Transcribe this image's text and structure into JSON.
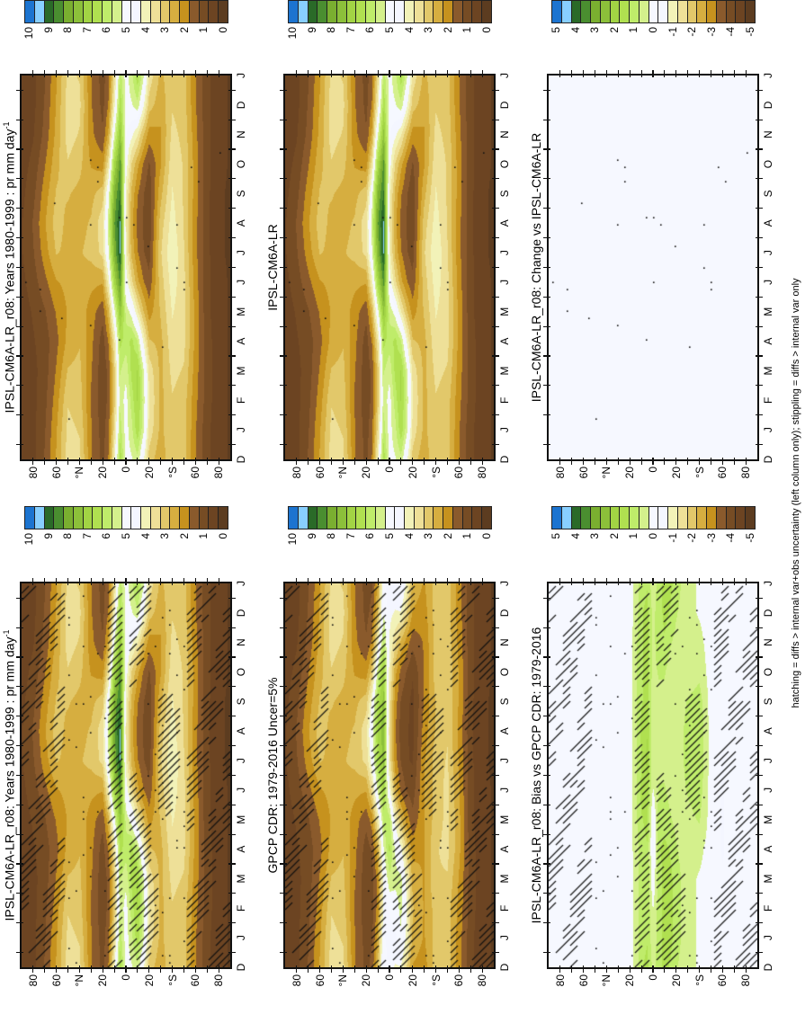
{
  "chart_data": {
    "type": "heatmap",
    "x_tick_labels": [
      "D",
      "J",
      "F",
      "M",
      "A",
      "M",
      "J",
      "J",
      "A",
      "S",
      "O",
      "N",
      "D",
      "J"
    ],
    "y_tick_labels": [
      "80",
      "60",
      "°N",
      "20",
      "0",
      "20",
      "°S",
      "60",
      "80"
    ],
    "y_tick_values": [
      80,
      60,
      40,
      20,
      0,
      -20,
      -40,
      -60,
      -80
    ],
    "grid_months": [
      "Jan",
      "Feb",
      "Mar",
      "Apr",
      "May",
      "Jun",
      "Jul",
      "Aug",
      "Sep",
      "Oct",
      "Nov",
      "Dec"
    ],
    "grid_lat": [
      90,
      80,
      70,
      60,
      50,
      40,
      30,
      20,
      15,
      10,
      5,
      0,
      -5,
      -10,
      -15,
      -20,
      -30,
      -40,
      -50,
      -60,
      -70,
      -80,
      -90
    ],
    "fields": {
      "model": [
        [
          0.4,
          0.4,
          0.4,
          0.5,
          0.5,
          0.6,
          0.7,
          0.7,
          0.6,
          0.5,
          0.4,
          0.4
        ],
        [
          0.6,
          0.6,
          0.6,
          0.7,
          0.8,
          1.0,
          1.2,
          1.3,
          1.1,
          0.9,
          0.7,
          0.6
        ],
        [
          1.2,
          1.1,
          1.0,
          1.0,
          1.2,
          1.6,
          2.0,
          2.2,
          2.0,
          1.7,
          1.4,
          1.3
        ],
        [
          2.2,
          2.0,
          1.8,
          1.6,
          1.8,
          2.2,
          2.8,
          3.0,
          2.8,
          2.6,
          2.4,
          2.3
        ],
        [
          3.4,
          3.2,
          2.8,
          2.4,
          2.3,
          2.4,
          2.6,
          2.6,
          2.8,
          3.2,
          3.5,
          3.5
        ],
        [
          3.2,
          3.0,
          2.9,
          2.7,
          2.6,
          2.6,
          2.7,
          2.6,
          2.6,
          2.9,
          3.2,
          3.4
        ],
        [
          1.8,
          1.7,
          1.8,
          1.9,
          2.0,
          2.4,
          2.9,
          2.8,
          2.6,
          2.2,
          1.9,
          1.8
        ],
        [
          1.0,
          0.9,
          0.9,
          1.0,
          1.4,
          2.3,
          3.4,
          3.6,
          3.0,
          2.0,
          1.3,
          1.1
        ],
        [
          1.6,
          1.4,
          1.4,
          1.8,
          2.6,
          4.0,
          5.2,
          5.6,
          5.0,
          3.6,
          2.4,
          1.8
        ],
        [
          3.4,
          3.0,
          3.0,
          3.6,
          5.0,
          6.8,
          7.8,
          8.2,
          7.8,
          6.8,
          5.2,
          4.0
        ],
        [
          6.0,
          5.6,
          5.8,
          6.4,
          7.4,
          8.4,
          9.3,
          9.3,
          8.8,
          8.4,
          7.4,
          6.6
        ],
        [
          5.0,
          5.0,
          5.4,
          6.0,
          5.6,
          4.6,
          4.0,
          3.8,
          4.0,
          4.6,
          4.8,
          5.0
        ],
        [
          5.6,
          6.0,
          6.4,
          6.4,
          5.0,
          3.4,
          2.6,
          2.4,
          2.6,
          3.2,
          4.4,
          5.2
        ],
        [
          6.6,
          6.8,
          6.8,
          5.8,
          3.8,
          2.4,
          1.8,
          1.6,
          1.8,
          2.4,
          3.8,
          5.6
        ],
        [
          5.4,
          5.6,
          5.4,
          4.2,
          2.8,
          1.8,
          1.3,
          1.2,
          1.3,
          1.7,
          2.8,
          4.4
        ],
        [
          3.6,
          3.8,
          3.6,
          2.8,
          2.0,
          1.4,
          1.0,
          0.9,
          0.9,
          1.2,
          2.0,
          3.0
        ],
        [
          2.6,
          2.6,
          2.6,
          2.6,
          2.8,
          3.0,
          3.2,
          3.0,
          2.6,
          2.2,
          2.2,
          2.4
        ],
        [
          3.2,
          3.2,
          3.4,
          3.6,
          3.8,
          4.0,
          4.2,
          4.0,
          3.8,
          3.6,
          3.4,
          3.2
        ],
        [
          3.0,
          3.0,
          3.2,
          3.4,
          3.4,
          3.4,
          3.3,
          3.2,
          3.2,
          3.2,
          3.1,
          3.0
        ],
        [
          1.8,
          1.9,
          2.0,
          2.1,
          2.1,
          2.0,
          1.9,
          1.9,
          2.0,
          2.0,
          1.9,
          1.8
        ],
        [
          0.9,
          1.0,
          1.0,
          1.0,
          0.9,
          0.9,
          0.9,
          0.9,
          0.9,
          0.9,
          0.9,
          0.9
        ],
        [
          0.4,
          0.4,
          0.4,
          0.4,
          0.4,
          0.4,
          0.3,
          0.3,
          0.3,
          0.4,
          0.4,
          0.4
        ],
        [
          0.2,
          0.2,
          0.2,
          0.2,
          0.2,
          0.2,
          0.2,
          0.2,
          0.2,
          0.2,
          0.2,
          0.2
        ]
      ],
      "obs": [
        [
          0.4,
          0.4,
          0.4,
          0.5,
          0.5,
          0.6,
          0.7,
          0.7,
          0.6,
          0.5,
          0.4,
          0.4
        ],
        [
          0.6,
          0.6,
          0.6,
          0.7,
          0.8,
          1.0,
          1.2,
          1.3,
          1.1,
          0.9,
          0.7,
          0.6
        ],
        [
          1.2,
          1.1,
          1.0,
          1.0,
          1.2,
          1.6,
          2.0,
          2.2,
          2.0,
          1.7,
          1.4,
          1.3
        ],
        [
          2.2,
          2.0,
          1.8,
          1.6,
          1.8,
          2.2,
          2.8,
          3.0,
          2.8,
          2.6,
          2.4,
          2.3
        ],
        [
          3.4,
          3.2,
          2.8,
          2.4,
          2.3,
          2.4,
          2.6,
          2.6,
          2.8,
          3.2,
          3.5,
          3.5
        ],
        [
          3.2,
          3.0,
          2.9,
          2.7,
          2.6,
          2.6,
          2.7,
          2.6,
          2.6,
          2.9,
          3.2,
          3.4
        ],
        [
          1.8,
          1.7,
          1.8,
          1.9,
          2.0,
          2.4,
          2.9,
          2.8,
          2.6,
          2.2,
          1.9,
          1.8
        ],
        [
          1.0,
          0.9,
          0.9,
          1.0,
          1.4,
          2.3,
          3.4,
          3.6,
          3.0,
          2.0,
          1.3,
          1.1
        ],
        [
          1.2,
          1.0,
          1.0,
          1.3,
          2.0,
          3.4,
          4.6,
          5.0,
          4.4,
          3.0,
          1.8,
          1.4
        ],
        [
          2.4,
          2.0,
          2.0,
          2.6,
          3.8,
          5.4,
          6.6,
          6.8,
          6.6,
          5.6,
          4.0,
          2.8
        ],
        [
          4.8,
          4.4,
          4.6,
          5.2,
          6.0,
          6.8,
          7.4,
          7.6,
          7.4,
          7.0,
          6.0,
          5.2
        ],
        [
          4.6,
          4.8,
          5.6,
          6.4,
          6.0,
          4.4,
          3.6,
          3.4,
          3.6,
          4.0,
          4.2,
          4.4
        ],
        [
          4.6,
          5.0,
          5.4,
          5.2,
          4.0,
          2.6,
          2.0,
          1.8,
          2.0,
          2.4,
          3.4,
          4.2
        ],
        [
          5.2,
          5.4,
          5.4,
          4.4,
          2.8,
          1.6,
          1.2,
          1.0,
          1.2,
          1.6,
          2.6,
          4.2
        ],
        [
          4.0,
          4.2,
          4.0,
          3.0,
          2.0,
          1.2,
          0.8,
          0.8,
          0.9,
          1.2,
          2.0,
          3.2
        ],
        [
          2.6,
          2.8,
          2.6,
          2.0,
          1.4,
          1.0,
          0.7,
          0.6,
          0.6,
          0.8,
          1.4,
          2.2
        ],
        [
          2.2,
          2.2,
          2.2,
          2.2,
          2.2,
          2.2,
          2.2,
          2.0,
          1.8,
          1.8,
          1.8,
          2.0
        ],
        [
          3.0,
          3.0,
          3.2,
          3.2,
          3.0,
          3.0,
          3.0,
          2.8,
          2.8,
          3.0,
          3.0,
          3.0
        ],
        [
          3.0,
          3.0,
          3.2,
          3.4,
          3.4,
          3.4,
          3.3,
          3.2,
          3.2,
          3.2,
          3.1,
          3.0
        ],
        [
          2.0,
          2.1,
          2.2,
          2.4,
          2.4,
          2.3,
          2.2,
          2.1,
          2.2,
          2.2,
          2.1,
          2.0
        ],
        [
          0.9,
          1.0,
          1.0,
          1.0,
          0.9,
          0.9,
          0.9,
          0.9,
          0.9,
          0.9,
          0.9,
          0.9
        ],
        [
          0.4,
          0.4,
          0.4,
          0.4,
          0.4,
          0.4,
          0.3,
          0.3,
          0.3,
          0.4,
          0.4,
          0.4
        ],
        [
          0.2,
          0.2,
          0.2,
          0.2,
          0.2,
          0.2,
          0.2,
          0.2,
          0.2,
          0.2,
          0.2,
          0.2
        ]
      ]
    },
    "colorbars": {
      "precip": {
        "max": 10,
        "labels": [
          "10",
          "9",
          "8",
          "7",
          "6",
          "5",
          "4",
          "3",
          "2",
          "1",
          "0"
        ]
      },
      "diff": {
        "max": 5,
        "labels": [
          "5",
          "4",
          "3",
          "2",
          "1",
          "0",
          "-1",
          "-2",
          "-3",
          "-4",
          "-5"
        ]
      },
      "colors": [
        "#1c74d0",
        "#88cfff",
        "#2a6a28",
        "#4a8e30",
        "#7aaf30",
        "#8cc03a",
        "#a2d444",
        "#b0e050",
        "#bfec6a",
        "#d4f08c",
        "#f6f8ff",
        "#f4f6ff",
        "#f2f2b8",
        "#eee098",
        "#e2c86a",
        "#d6ae40",
        "#c6921e",
        "#8a5a2c",
        "#764c24",
        "#6c4422",
        "#5c3c20"
      ]
    },
    "panels": [
      {
        "title": "IPSL-CM6A-LR_r08: Years 1980-1999 : pr mm day",
        "title_sup": "-1",
        "field": "model",
        "colorbar": "precip",
        "column": "left",
        "row": 1,
        "hatching": true
      },
      {
        "title": "GPCP CDR: 1979-2016 Uncer=5%",
        "title_sup": "",
        "field": "obs",
        "colorbar": "precip",
        "column": "left",
        "row": 2,
        "hatching": true
      },
      {
        "title": "IPSL-CM6A-LR_r08: Bias vs GPCP CDR: 1979-2016",
        "title_sup": "",
        "field": [
          "model",
          "obs"
        ],
        "colorbar": "diff",
        "column": "left",
        "row": 3,
        "hatching": true
      },
      {
        "title": "IPSL-CM6A-LR_r08: Years 1980-1999 : pr mm day",
        "title_sup": "-1",
        "field": "model",
        "colorbar": "precip",
        "column": "right",
        "row": 1,
        "hatching": false
      },
      {
        "title": "IPSL-CM6A-LR",
        "title_sup": "",
        "field": "model",
        "colorbar": "precip",
        "column": "right",
        "row": 2,
        "hatching": false
      },
      {
        "title": "IPSL-CM6A-LR_r08: Change vs IPSL-CM6A-LR",
        "title_sup": "",
        "field": [
          "model",
          "model"
        ],
        "colorbar": "diff",
        "column": "right",
        "row": 3,
        "hatching": false
      }
    ],
    "footnote": "hatching = diffs > internal var+obs uncertainty (left column only); stippling = diffs > internal var only"
  }
}
